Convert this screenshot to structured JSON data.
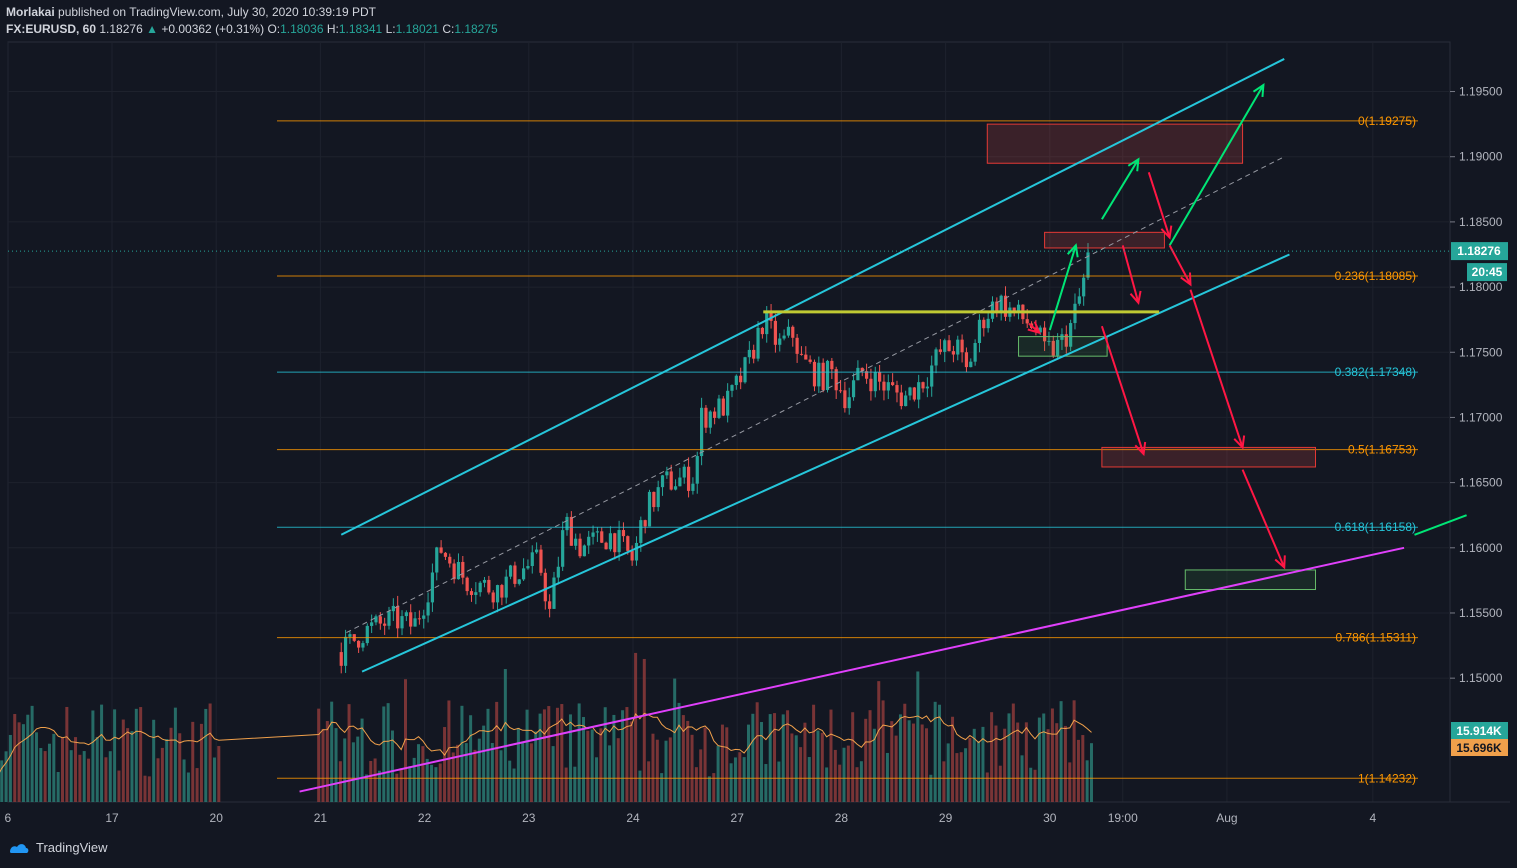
{
  "header": {
    "publisher": "Morlakai",
    "published_text": "published on TradingView.com, July 30, 2020 10:39:19 PDT",
    "symbol": "FX:EURUSD, 60",
    "last": "1.18276",
    "change": "+0.00362 (+0.31%)",
    "o_label": "O:",
    "o": "1.18036",
    "h_label": "H:",
    "h": "1.18341",
    "l_label": "L:",
    "l": "1.18021",
    "c_label": "C:",
    "c": "1.18275"
  },
  "footer": {
    "brand": "TradingView"
  },
  "colors": {
    "background": "#131722",
    "up": "#26a69a",
    "down": "#ef5350",
    "channel": "#26c6da",
    "support": "#e040fb",
    "fib_orange": "#ff9800",
    "fib_blue": "#26c6da",
    "arrow_up": "#00e676",
    "arrow_down": "#ff1744",
    "horizontal": "#c0ca33"
  },
  "chart_data": {
    "type": "candlestick",
    "symbol": "EURUSD",
    "timeframe": "60",
    "ylim": [
      1.1405,
      1.1988
    ],
    "y_ticks": [
      "1.19500",
      "1.19000",
      "1.18500",
      "1.18000",
      "1.17500",
      "1.17000",
      "1.16500",
      "1.16000",
      "1.15500",
      "1.15000"
    ],
    "x_ticks": [
      "6",
      "17",
      "20",
      "21",
      "22",
      "23",
      "24",
      "27",
      "28",
      "29",
      "30",
      "19:00",
      "Aug",
      "4"
    ],
    "x_tick_days": [
      -0.9,
      0.1,
      1.1,
      2.1,
      3.1,
      4.1,
      5.1,
      6.1,
      7.1,
      8.1,
      9.1,
      9.8,
      10.8,
      12.2
    ],
    "current_price": "1.18276",
    "countdown": "20:45",
    "volume_labels": [
      "15.914K",
      "15.696K"
    ],
    "candle_anchors": [
      [
        2.3,
        1.152
      ],
      [
        2.5,
        1.1535
      ],
      [
        2.8,
        1.1545
      ],
      [
        3.0,
        1.154
      ],
      [
        3.1,
        1.156
      ],
      [
        3.25,
        1.16
      ],
      [
        3.5,
        1.1575
      ],
      [
        3.8,
        1.1568
      ],
      [
        4.0,
        1.1582
      ],
      [
        4.2,
        1.159
      ],
      [
        4.3,
        1.155
      ],
      [
        4.45,
        1.162
      ],
      [
        4.6,
        1.16
      ],
      [
        4.9,
        1.161
      ],
      [
        5.1,
        1.159
      ],
      [
        5.2,
        1.1625
      ],
      [
        5.4,
        1.165
      ],
      [
        5.7,
        1.1655
      ],
      [
        5.75,
        1.17
      ],
      [
        6.0,
        1.171
      ],
      [
        6.2,
        1.174
      ],
      [
        6.35,
        1.1775
      ],
      [
        6.5,
        1.1755
      ],
      [
        6.65,
        1.1765
      ],
      [
        6.7,
        1.1745
      ],
      [
        6.9,
        1.173
      ],
      [
        7.0,
        1.1735
      ],
      [
        7.15,
        1.1715
      ],
      [
        7.3,
        1.1735
      ],
      [
        7.5,
        1.1725
      ],
      [
        7.7,
        1.1715
      ],
      [
        7.9,
        1.173
      ],
      [
        8.05,
        1.175
      ],
      [
        8.2,
        1.1755
      ],
      [
        8.3,
        1.1735
      ],
      [
        8.45,
        1.1775
      ],
      [
        8.6,
        1.179
      ],
      [
        8.75,
        1.178
      ],
      [
        8.95,
        1.177
      ],
      [
        9.05,
        1.175
      ],
      [
        9.2,
        1.1755
      ],
      [
        9.3,
        1.177
      ],
      [
        9.4,
        1.1795
      ],
      [
        9.48,
        1.1828
      ]
    ],
    "fib_levels": [
      {
        "label": "0(1.19275)",
        "value": 1.19275,
        "color": "fib_orange"
      },
      {
        "label": "0.236(1.18085)",
        "value": 1.18085,
        "color": "fib_orange"
      },
      {
        "label": "0.382(1.17348)",
        "value": 1.17348,
        "color": "fib_blue"
      },
      {
        "label": "0.5(1.16753)",
        "value": 1.16753,
        "color": "fib_orange"
      },
      {
        "label": "0.618(1.16158)",
        "value": 1.16158,
        "color": "fib_blue"
      },
      {
        "label": "0.786(1.15311)",
        "value": 1.15311,
        "color": "fib_orange"
      },
      {
        "label": "1(1.14232)",
        "value": 1.14232,
        "color": "fib_orange"
      }
    ],
    "channel_upper": [
      [
        2.3,
        1.161
      ],
      [
        11.35,
        1.1975
      ]
    ],
    "channel_lower": [
      [
        2.5,
        1.1505
      ],
      [
        11.4,
        1.1825
      ]
    ],
    "channel_mid_dashed": [
      [
        2.35,
        1.1535
      ],
      [
        11.35,
        1.19
      ]
    ],
    "support_line": [
      [
        1.9,
        1.1413
      ],
      [
        12.5,
        1.16
      ]
    ],
    "green_line_right": [
      [
        12.6,
        1.161
      ],
      [
        13.1,
        1.1625
      ]
    ],
    "horizontal_level": [
      [
        6.35,
        1.1781
      ],
      [
        10.15,
        1.1781
      ]
    ],
    "zones": [
      {
        "kind": "red",
        "x": [
          8.5,
          10.95
        ],
        "y": [
          1.1895,
          1.1925
        ]
      },
      {
        "kind": "red",
        "x": [
          9.05,
          10.2
        ],
        "y": [
          1.183,
          1.1842
        ]
      },
      {
        "kind": "green",
        "x": [
          8.8,
          9.65
        ],
        "y": [
          1.1747,
          1.1762
        ]
      },
      {
        "kind": "red",
        "x": [
          9.6,
          11.65
        ],
        "y": [
          1.1662,
          1.1677
        ]
      },
      {
        "kind": "green",
        "x": [
          10.4,
          11.65
        ],
        "y": [
          1.1568,
          1.1583
        ]
      }
    ],
    "arrows_up": [
      [
        [
          9.1,
          1.1767
        ],
        [
          9.35,
          1.1832
        ]
      ],
      [
        [
          9.6,
          1.1852
        ],
        [
          9.95,
          1.1898
        ]
      ],
      [
        [
          10.25,
          1.1832
        ],
        [
          11.15,
          1.1955
        ]
      ]
    ],
    "arrows_down": [
      [
        [
          9.8,
          1.1832
        ],
        [
          9.95,
          1.1788
        ]
      ],
      [
        [
          9.6,
          1.177
        ],
        [
          10.0,
          1.1672
        ]
      ],
      [
        [
          10.05,
          1.1888
        ],
        [
          10.25,
          1.1838
        ]
      ],
      [
        [
          10.25,
          1.1832
        ],
        [
          10.45,
          1.1802
        ]
      ],
      [
        [
          10.45,
          1.1798
        ],
        [
          10.95,
          1.1677
        ]
      ],
      [
        [
          10.95,
          1.166
        ],
        [
          11.35,
          1.1585
        ]
      ],
      [
        [
          8.9,
          1.1772
        ],
        [
          9.0,
          1.1765
        ]
      ]
    ]
  }
}
